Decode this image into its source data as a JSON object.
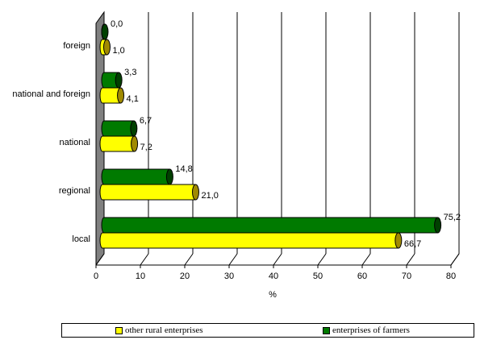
{
  "chart_data": {
    "type": "bar",
    "orientation": "horizontal",
    "style": "3d-cylinder",
    "categories": [
      "local",
      "regional",
      "national",
      "national and foreign",
      "foreign"
    ],
    "series": [
      {
        "name": "enterprises of farmers",
        "color": "#007a00",
        "values": [
          75.2,
          14.8,
          6.7,
          3.3,
          0.0
        ],
        "labels": [
          "75,2",
          "14,8",
          "6,7",
          "3,3",
          "0,0"
        ]
      },
      {
        "name": "other rural enterprises",
        "color": "#ffff00",
        "values": [
          66.7,
          21.0,
          7.2,
          4.1,
          1.0
        ],
        "labels": [
          "66,7",
          "21,0",
          "7,2",
          "4,1",
          "1,0"
        ]
      }
    ],
    "xlabel": "%",
    "xlim": [
      0,
      80
    ],
    "xticks": [
      0,
      10,
      20,
      30,
      40,
      50,
      60,
      70,
      80
    ],
    "grid": true,
    "legend_position": "bottom"
  },
  "legend": {
    "items": [
      {
        "label": "other rural enterprises",
        "color": "#ffff00"
      },
      {
        "label": "enterprises of farmers",
        "color": "#007a00"
      }
    ]
  }
}
